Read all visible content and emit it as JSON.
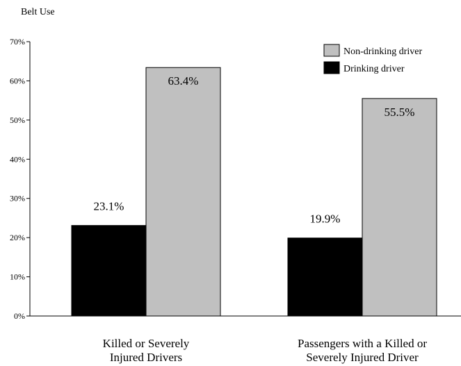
{
  "chart_data": {
    "type": "bar",
    "ylabel": "Belt Use",
    "ylim": [
      0,
      70
    ],
    "y_ticks": [
      {
        "value": 0,
        "label": "0%"
      },
      {
        "value": 10,
        "label": "10%"
      },
      {
        "value": 20,
        "label": "20%"
      },
      {
        "value": 30,
        "label": "30%"
      },
      {
        "value": 40,
        "label": "40%"
      },
      {
        "value": 50,
        "label": "50%"
      },
      {
        "value": 60,
        "label": "60%"
      },
      {
        "value": 70,
        "label": "70%"
      }
    ],
    "grid": false,
    "legend_position": "top-right",
    "categories": [
      [
        "Killed or Severely",
        "Injured Drivers"
      ],
      [
        "Passengers with a Killed or",
        "Severely Injured Driver"
      ]
    ],
    "series": [
      {
        "name": "Drinking driver",
        "color": "#000000",
        "values": [
          23.1,
          19.9
        ],
        "labels": [
          "23.1%",
          "19.9%"
        ]
      },
      {
        "name": "Non-drinking driver",
        "color": "#c0c0c0",
        "values": [
          63.4,
          55.5
        ],
        "labels": [
          "63.4%",
          "55.5%"
        ]
      }
    ],
    "legend_order": [
      1,
      0
    ]
  }
}
